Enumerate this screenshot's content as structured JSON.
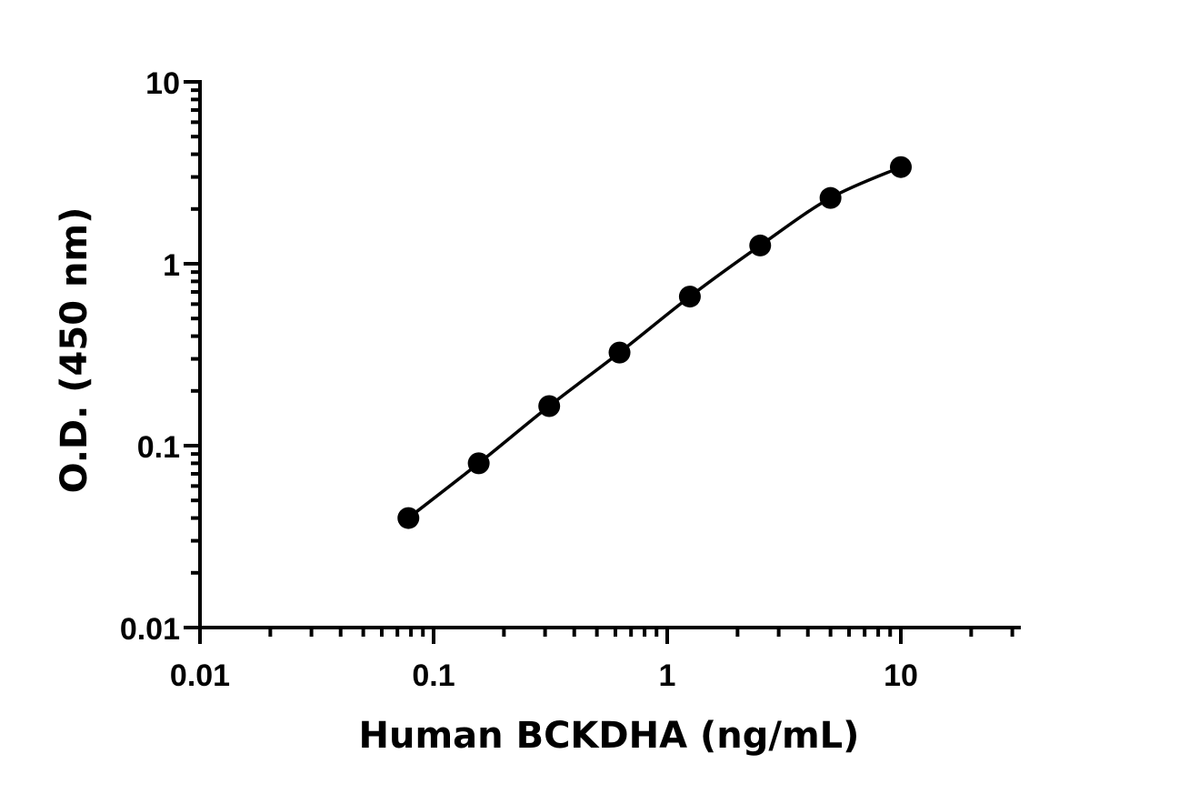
{
  "chart_data": {
    "type": "scatter",
    "xlabel": "Human BCKDHA (ng/mL)",
    "ylabel": "O.D. (450 nm)",
    "x_scale": "log",
    "y_scale": "log",
    "xlim": [
      0.01,
      30
    ],
    "ylim": [
      0.01,
      10
    ],
    "x_tick_labels": [
      "0.01",
      "0.1",
      "1",
      "10"
    ],
    "y_tick_labels": [
      "0.01",
      "0.1",
      "1",
      "10"
    ],
    "grid": false,
    "fit_line": true,
    "color": "#000000",
    "series": [
      {
        "x": [
          0.078,
          0.156,
          0.3125,
          0.625,
          1.25,
          2.5,
          5,
          10
        ],
        "y": [
          0.04,
          0.08,
          0.165,
          0.325,
          0.66,
          1.26,
          2.3,
          3.4
        ]
      }
    ]
  }
}
